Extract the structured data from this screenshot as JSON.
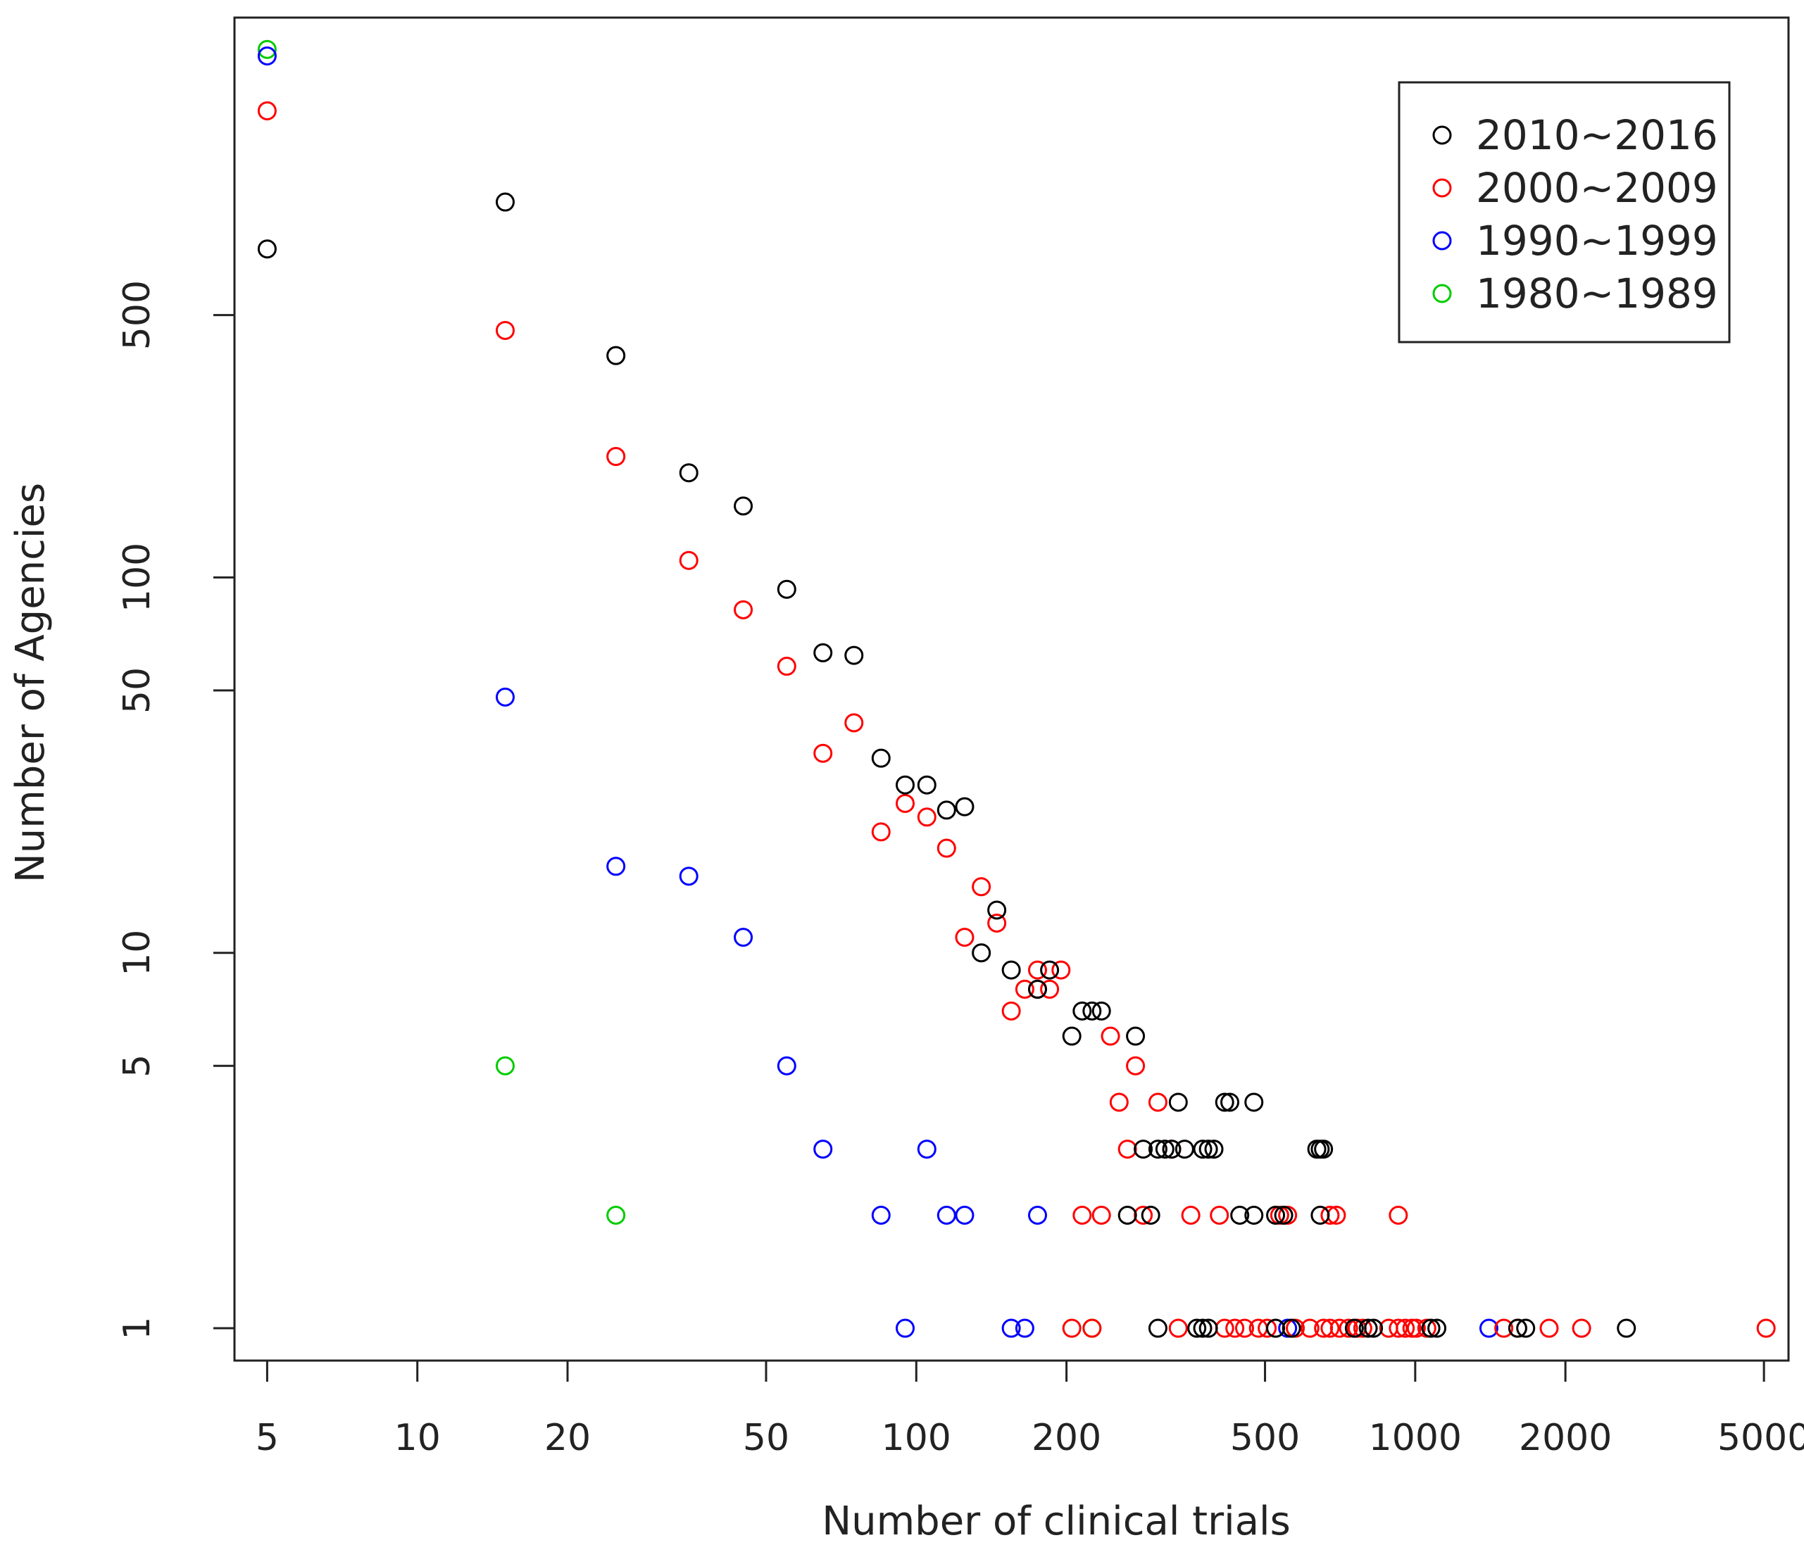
{
  "chart_data": {
    "type": "scatter",
    "title": "",
    "xlabel": "Number of clinical trials",
    "ylabel": "Number of Agencies",
    "xscale": "log",
    "yscale": "log",
    "xlim": [
      4.3,
      5600
    ],
    "ylim": [
      0.82,
      3100
    ],
    "xticks": [
      5,
      10,
      20,
      50,
      100,
      200,
      500,
      1000,
      2000,
      5000
    ],
    "xtick_labels": [
      "5",
      "10",
      "20",
      "50",
      "100",
      "200",
      "500",
      "1000",
      "2000",
      "5000"
    ],
    "yticks": [
      1,
      5,
      10,
      50,
      100,
      500
    ],
    "ytick_labels": [
      "1",
      "5",
      "10",
      "50",
      "100",
      "500"
    ],
    "grid": false,
    "legend_position": "top-right",
    "series": [
      {
        "name": "2010~2016",
        "color": "#000000",
        "points": [
          [
            5,
            750
          ],
          [
            15,
            1000
          ],
          [
            25,
            390
          ],
          [
            35,
            190
          ],
          [
            45,
            155
          ],
          [
            55,
            93
          ],
          [
            65,
            63
          ],
          [
            75,
            62
          ],
          [
            85,
            33
          ],
          [
            95,
            28
          ],
          [
            105,
            28
          ],
          [
            115,
            24
          ],
          [
            125,
            24.5
          ],
          [
            145,
            13
          ],
          [
            135,
            10
          ],
          [
            155,
            9
          ],
          [
            175,
            8
          ],
          [
            185,
            9
          ],
          [
            205,
            6
          ],
          [
            215,
            7
          ],
          [
            225,
            7
          ],
          [
            235,
            7
          ],
          [
            275,
            6
          ],
          [
            265,
            2
          ],
          [
            285,
            3
          ],
          [
            295,
            2
          ],
          [
            305,
            3
          ],
          [
            315,
            3
          ],
          [
            325,
            3
          ],
          [
            335,
            4
          ],
          [
            345,
            3
          ],
          [
            375,
            3
          ],
          [
            385,
            3
          ],
          [
            395,
            3
          ],
          [
            415,
            4
          ],
          [
            425,
            4
          ],
          [
            445,
            2
          ],
          [
            475,
            2
          ],
          [
            475,
            4
          ],
          [
            525,
            2
          ],
          [
            545,
            2
          ],
          [
            635,
            3
          ],
          [
            645,
            3
          ],
          [
            655,
            3
          ],
          [
            645,
            2
          ],
          [
            305,
            1
          ],
          [
            365,
            1
          ],
          [
            375,
            1
          ],
          [
            385,
            1
          ],
          [
            525,
            1
          ],
          [
            565,
            1
          ],
          [
            755,
            1
          ],
          [
            805,
            1
          ],
          [
            825,
            1
          ],
          [
            1075,
            1
          ],
          [
            1105,
            1
          ],
          [
            1605,
            1
          ],
          [
            1665,
            1
          ],
          [
            2650,
            1
          ]
        ]
      },
      {
        "name": "2000~2009",
        "color": "#ff0000",
        "points": [
          [
            5,
            1750
          ],
          [
            15,
            455
          ],
          [
            25,
            210
          ],
          [
            35,
            111
          ],
          [
            45,
            82
          ],
          [
            55,
            58
          ],
          [
            65,
            34
          ],
          [
            75,
            41
          ],
          [
            85,
            21
          ],
          [
            95,
            25
          ],
          [
            105,
            23
          ],
          [
            115,
            19
          ],
          [
            125,
            11
          ],
          [
            135,
            15
          ],
          [
            145,
            12
          ],
          [
            155,
            7
          ],
          [
            165,
            8
          ],
          [
            175,
            8
          ],
          [
            185,
            8
          ],
          [
            175,
            9
          ],
          [
            195,
            9
          ],
          [
            205,
            1
          ],
          [
            215,
            2
          ],
          [
            225,
            1
          ],
          [
            235,
            2
          ],
          [
            245,
            6
          ],
          [
            255,
            4
          ],
          [
            265,
            3
          ],
          [
            275,
            5
          ],
          [
            305,
            4
          ],
          [
            285,
            2
          ],
          [
            325,
            3
          ],
          [
            355,
            2
          ],
          [
            405,
            2
          ],
          [
            535,
            2
          ],
          [
            555,
            2
          ],
          [
            675,
            2
          ],
          [
            695,
            2
          ],
          [
            925,
            2
          ],
          [
            335,
            1
          ],
          [
            415,
            1
          ],
          [
            435,
            1
          ],
          [
            455,
            1
          ],
          [
            485,
            1
          ],
          [
            505,
            1
          ],
          [
            575,
            1
          ],
          [
            615,
            1
          ],
          [
            655,
            1
          ],
          [
            675,
            1
          ],
          [
            705,
            1
          ],
          [
            735,
            1
          ],
          [
            765,
            1
          ],
          [
            785,
            1
          ],
          [
            885,
            1
          ],
          [
            925,
            1
          ],
          [
            955,
            1
          ],
          [
            985,
            1
          ],
          [
            1005,
            1
          ],
          [
            1055,
            1
          ],
          [
            1505,
            1
          ],
          [
            1605,
            1
          ],
          [
            1855,
            1
          ],
          [
            2155,
            1
          ],
          [
            5050,
            1
          ]
        ]
      },
      {
        "name": "1990~1999",
        "color": "#0000ff",
        "points": [
          [
            5,
            2450
          ],
          [
            15,
            48
          ],
          [
            25,
            17
          ],
          [
            35,
            16
          ],
          [
            45,
            11
          ],
          [
            55,
            5
          ],
          [
            65,
            3
          ],
          [
            105,
            3
          ],
          [
            85,
            2
          ],
          [
            115,
            2
          ],
          [
            125,
            2
          ],
          [
            175,
            2
          ],
          [
            95,
            1
          ],
          [
            155,
            1
          ],
          [
            165,
            1
          ],
          [
            555,
            1
          ],
          [
            1405,
            1
          ]
        ]
      },
      {
        "name": "1980~1989",
        "color": "#00cc00",
        "points": [
          [
            5,
            2550
          ],
          [
            15,
            5
          ],
          [
            25,
            2
          ],
          [
            225,
            1
          ]
        ]
      }
    ]
  }
}
